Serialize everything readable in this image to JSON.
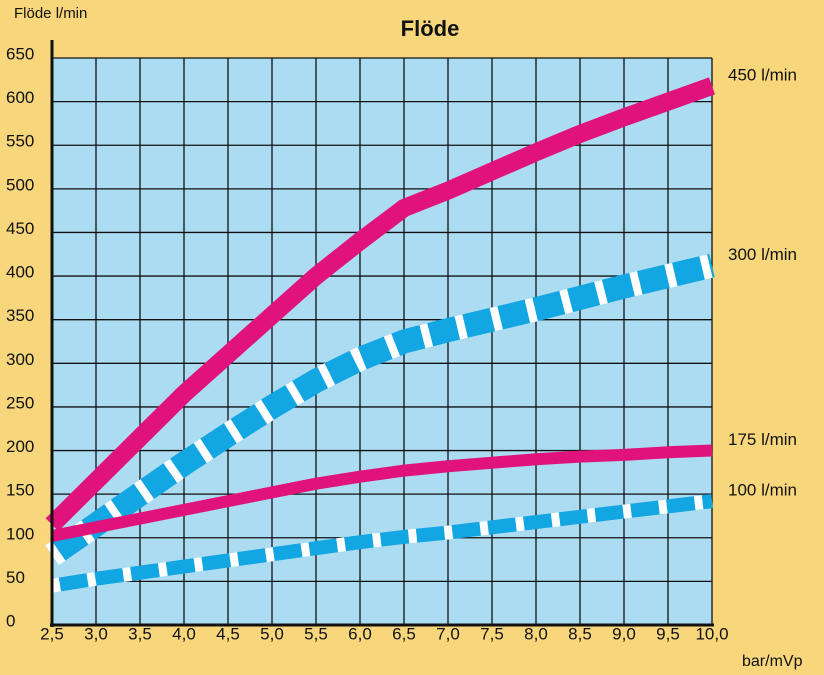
{
  "chart_data": {
    "type": "line",
    "title": "Flöde",
    "ylabel": "Flöde l/min",
    "xlabel": "bar/mVp",
    "x": [
      2.5,
      3.0,
      3.5,
      4.0,
      4.5,
      5.0,
      5.5,
      6.0,
      6.5,
      7.0,
      7.5,
      8.0,
      8.5,
      9.0,
      9.5,
      10.0
    ],
    "xlim": [
      2.5,
      10.0
    ],
    "xticks": [
      {
        "value": 2.5,
        "label": "2,5"
      },
      {
        "value": 3.0,
        "label": "3,0"
      },
      {
        "value": 3.5,
        "label": "3,5"
      },
      {
        "value": 4.0,
        "label": "4,0"
      },
      {
        "value": 4.5,
        "label": "4,5"
      },
      {
        "value": 5.0,
        "label": "5,0"
      },
      {
        "value": 5.5,
        "label": "5,5"
      },
      {
        "value": 6.0,
        "label": "6,0"
      },
      {
        "value": 6.5,
        "label": "6,5"
      },
      {
        "value": 7.0,
        "label": "7,0"
      },
      {
        "value": 7.5,
        "label": "7,5"
      },
      {
        "value": 8.0,
        "label": "8,0"
      },
      {
        "value": 8.5,
        "label": "8,5"
      },
      {
        "value": 9.0,
        "label": "9,0"
      },
      {
        "value": 9.5,
        "label": "9,5"
      },
      {
        "value": 10.0,
        "label": "10,0"
      }
    ],
    "ylim": [
      0,
      650
    ],
    "yticks": [
      0,
      50,
      100,
      150,
      200,
      250,
      300,
      350,
      400,
      450,
      500,
      550,
      600,
      650
    ],
    "grid": true,
    "series": [
      {
        "name": "450 l/min",
        "color": "#e0137c",
        "dashed": false,
        "values": [
          115,
          165,
          215,
          265,
          310,
          355,
          400,
          440,
          478,
          498,
          520,
          542,
          563,
          582,
          600,
          618
        ]
      },
      {
        "name": "300 l/min",
        "color": "#12a6e2",
        "dashed": true,
        "values": [
          80,
          115,
          150,
          185,
          218,
          250,
          280,
          305,
          325,
          338,
          350,
          362,
          375,
          388,
          400,
          412
        ]
      },
      {
        "name": "175 l/min",
        "color": "#e0137c",
        "dashed": false,
        "values": [
          102,
          112,
          122,
          132,
          142,
          152,
          162,
          170,
          177,
          182,
          186,
          190,
          193,
          195,
          198,
          200
        ]
      },
      {
        "name": "100 l/min",
        "color": "#12a6e2",
        "dashed": true,
        "values": [
          45,
          53,
          60,
          67,
          74,
          81,
          88,
          95,
          101,
          106,
          112,
          118,
          124,
          130,
          136,
          142
        ]
      }
    ]
  }
}
